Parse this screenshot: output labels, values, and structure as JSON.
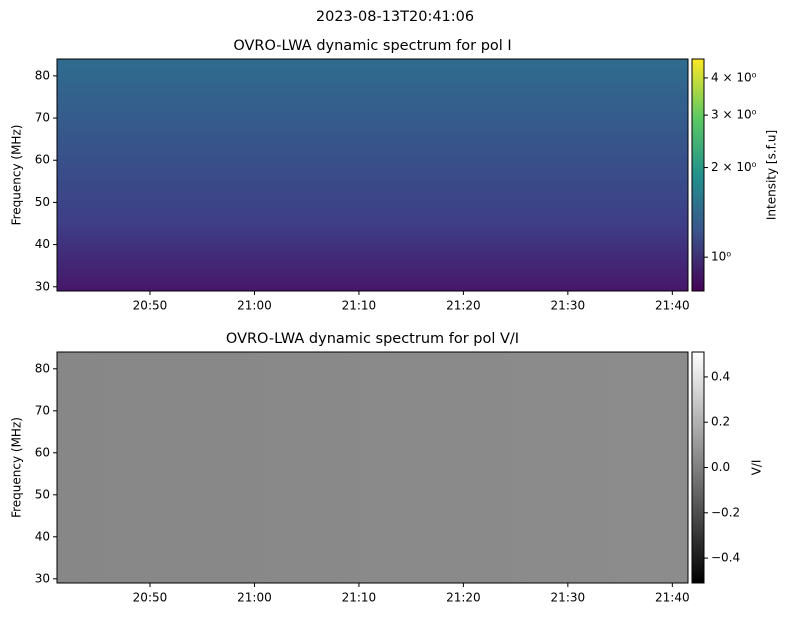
{
  "title": "2023-08-13T20:41:06",
  "chart_data": [
    {
      "type": "heatmap",
      "title": "OVRO-LWA dynamic spectrum for pol I",
      "ylabel": "Frequency (MHz)",
      "ylim": [
        29,
        84
      ],
      "yticks": [
        30,
        40,
        50,
        60,
        70,
        80
      ],
      "xlim": [
        "20:41:06",
        "21:41:30"
      ],
      "xticks": [
        "20:50",
        "21:00",
        "21:10",
        "21:20",
        "21:30",
        "21:40"
      ],
      "colormap": "viridis",
      "colorbar_label": "Intensity [s.f.u]",
      "colorbar_scale": "log",
      "clim": [
        0.77,
        4.63
      ],
      "colorbar_ticks": [
        {
          "value": 1,
          "label": "10⁰"
        },
        {
          "value": 2,
          "label": "2 × 10⁰"
        },
        {
          "value": 3,
          "label": "3 × 10⁰"
        },
        {
          "value": 4,
          "label": "4 × 10⁰"
        }
      ]
    },
    {
      "type": "heatmap",
      "title": "OVRO-LWA dynamic spectrum for pol V/I",
      "ylabel": "Frequency (MHz)",
      "ylim": [
        29,
        84
      ],
      "yticks": [
        30,
        40,
        50,
        60,
        70,
        80
      ],
      "xlim": [
        "20:41:06",
        "21:41:30"
      ],
      "xticks": [
        "20:50",
        "21:00",
        "21:10",
        "21:20",
        "21:30",
        "21:40"
      ],
      "colormap": "gray",
      "colorbar_label": "V/I",
      "colorbar_scale": "linear",
      "clim": [
        -0.51,
        0.51
      ],
      "colorbar_ticks": [
        {
          "value": -0.4,
          "label": "−0.4"
        },
        {
          "value": -0.2,
          "label": "−0.2"
        },
        {
          "value": 0,
          "label": "0.0"
        },
        0.2,
        0.4
      ]
    }
  ]
}
